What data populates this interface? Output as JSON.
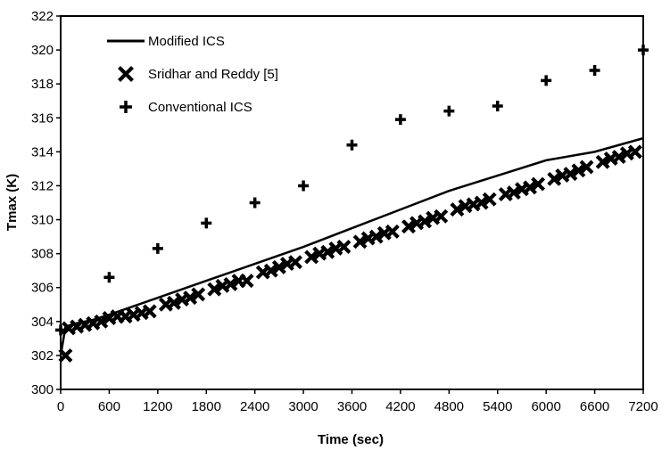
{
  "chart_data": {
    "type": "scatter",
    "xlabel": "Time (sec)",
    "ylabel": "Tmax  (K)",
    "xlim": [
      0,
      7200
    ],
    "ylim": [
      300,
      322
    ],
    "xticks": [
      0,
      600,
      1200,
      1800,
      2400,
      3000,
      3600,
      4200,
      4800,
      5400,
      6000,
      6600,
      7200
    ],
    "yticks": [
      300,
      302,
      304,
      306,
      308,
      310,
      312,
      314,
      316,
      318,
      320,
      322
    ],
    "grid": false,
    "legend_position": "top-left",
    "series": [
      {
        "name": "Modified ICS",
        "style": "line",
        "color": "#000000",
        "x": [
          0,
          60,
          200,
          400,
          600,
          1200,
          1800,
          2400,
          3000,
          3600,
          4200,
          4800,
          5400,
          6000,
          6600,
          7200
        ],
        "y": [
          302.0,
          303.7,
          303.9,
          304.1,
          304.4,
          305.4,
          306.4,
          307.4,
          308.4,
          309.5,
          310.6,
          311.7,
          312.6,
          313.5,
          314.0,
          314.8
        ]
      },
      {
        "name": "Sridhar and Reddy [5]",
        "style": "x-marker",
        "color": "#000000",
        "x": [
          60,
          100,
          200,
          300,
          400,
          500,
          600,
          700,
          800,
          900,
          1000,
          1100,
          1300,
          1400,
          1500,
          1600,
          1700,
          1900,
          2000,
          2100,
          2200,
          2300,
          2500,
          2600,
          2700,
          2800,
          2900,
          3100,
          3200,
          3300,
          3400,
          3500,
          3700,
          3800,
          3900,
          4000,
          4100,
          4300,
          4400,
          4500,
          4600,
          4700,
          4900,
          5000,
          5100,
          5200,
          5300,
          5500,
          5600,
          5700,
          5800,
          5900,
          6100,
          6200,
          6300,
          6400,
          6500,
          6700,
          6800,
          6900,
          7000,
          7100
        ],
        "y": [
          302.0,
          303.6,
          303.7,
          303.8,
          303.9,
          304.0,
          304.2,
          304.3,
          304.3,
          304.4,
          304.5,
          304.6,
          305.0,
          305.1,
          305.3,
          305.4,
          305.6,
          305.9,
          306.1,
          306.2,
          306.4,
          306.4,
          306.9,
          307.0,
          307.2,
          307.4,
          307.5,
          307.8,
          308.0,
          308.1,
          308.3,
          308.4,
          308.7,
          308.9,
          309.0,
          309.2,
          309.3,
          309.6,
          309.8,
          309.9,
          310.1,
          310.2,
          310.6,
          310.8,
          310.9,
          311.0,
          311.2,
          311.5,
          311.6,
          311.8,
          311.9,
          312.1,
          312.4,
          312.6,
          312.7,
          312.9,
          313.1,
          313.4,
          313.6,
          313.7,
          313.9,
          314.0
        ]
      },
      {
        "name": "Conventional ICS",
        "style": "plus-marker",
        "color": "#000000",
        "x": [
          0,
          600,
          1200,
          1800,
          2400,
          3000,
          3600,
          4200,
          4800,
          5400,
          6000,
          6600,
          7200
        ],
        "y": [
          303.5,
          306.6,
          308.3,
          309.8,
          311.0,
          312.0,
          314.4,
          315.9,
          316.4,
          316.7,
          318.2,
          318.8,
          320.0
        ]
      }
    ]
  }
}
